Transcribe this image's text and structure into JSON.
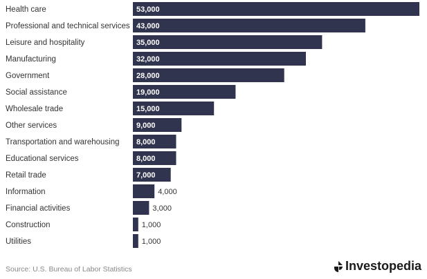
{
  "chart_data": {
    "type": "bar",
    "orientation": "horizontal",
    "categories": [
      "Health care",
      "Professional and technical services",
      "Leisure and hospitality",
      "Manufacturing",
      "Government",
      "Social assistance",
      "Wholesale trade",
      "Other services",
      "Transportation and warehousing",
      "Educational services",
      "Retail trade",
      "Information",
      "Financial activities",
      "Construction",
      "Utilities"
    ],
    "values": [
      53000,
      43000,
      35000,
      32000,
      28000,
      19000,
      15000,
      9000,
      8000,
      8000,
      7000,
      4000,
      3000,
      1000,
      1000
    ],
    "value_labels": [
      "53,000",
      "43,000",
      "35,000",
      "32,000",
      "28,000",
      "19,000",
      "15,000",
      "9,000",
      "8,000",
      "8,000",
      "7,000",
      "4,000",
      "3,000",
      "1,000",
      "1,000"
    ],
    "xlim": [
      0,
      53000
    ],
    "bar_color": "#30344e",
    "grid": false,
    "legend": "none"
  },
  "footer": {
    "source": "Source: U.S. Bureau of Labor Statistics",
    "brand": "Investopedia",
    "brand_icon": "investopedia-logo-icon"
  }
}
